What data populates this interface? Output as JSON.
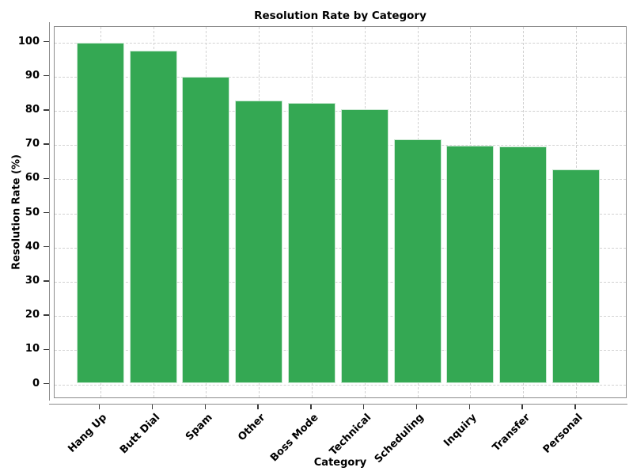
{
  "chart_data": {
    "type": "bar",
    "title": "Resolution Rate by Category",
    "xlabel": "Category",
    "ylabel": "Resolution Rate (%)",
    "categories": [
      "Hang Up",
      "Butt Dial",
      "Spam",
      "Other",
      "Boss Mode",
      "Technical",
      "Scheduling",
      "Inquiry",
      "Transfer",
      "Personal"
    ],
    "values": [
      99.5,
      97.2,
      89.4,
      82.5,
      81.8,
      80.0,
      71.1,
      69.4,
      69.1,
      62.3
    ],
    "yticks": [
      0,
      10,
      20,
      30,
      40,
      50,
      60,
      70,
      80,
      90,
      100
    ],
    "ylim": [
      -4.3,
      104.5
    ],
    "grid": "dashed, horizontal and vertical, light gray, axisbelow",
    "legend": "none",
    "bar_color": "#34a853",
    "bar_edge_color": "#ffffff",
    "spine_color": "#8c8c8c",
    "grid_color": "#d2d2d2",
    "text_color": "#000000"
  }
}
